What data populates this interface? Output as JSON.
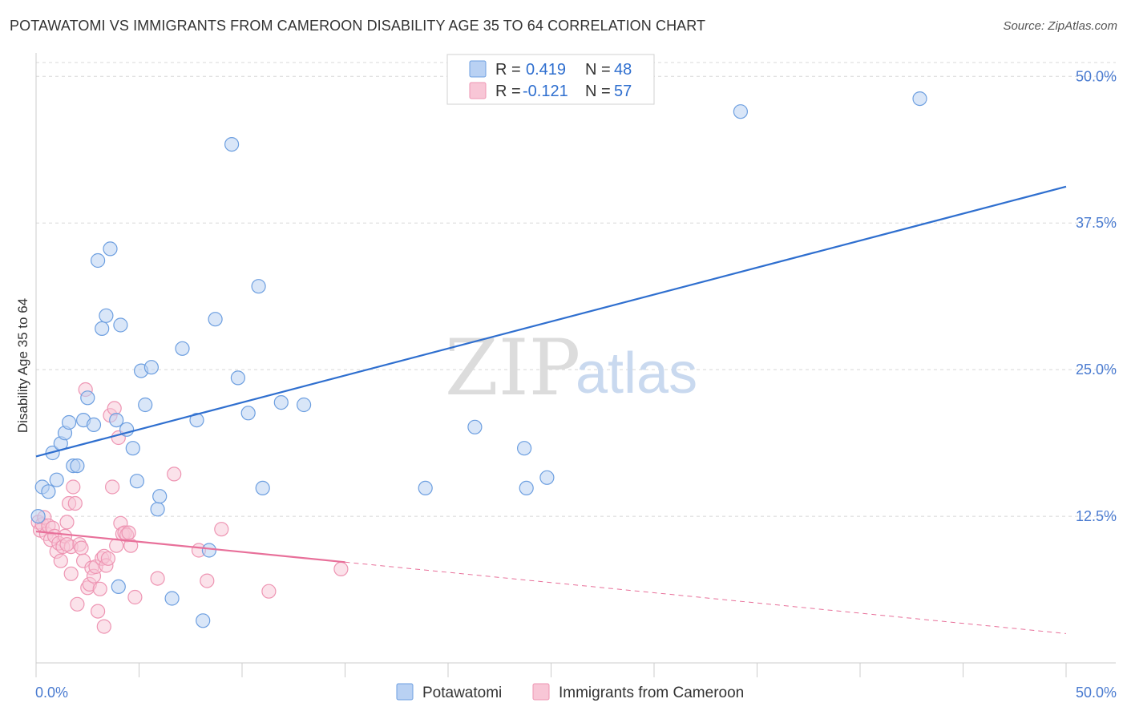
{
  "title": "POTAWATOMI VS IMMIGRANTS FROM CAMEROON DISABILITY AGE 35 TO 64 CORRELATION CHART",
  "source": "Source: ZipAtlas.com",
  "watermark": {
    "zip": "ZIP",
    "atlas": "atlas"
  },
  "colors": {
    "blue": "#2f6fcf",
    "blue_fill": "#b9d1f3",
    "blue_stroke": "#6d9fe0",
    "pink": "#e8709a",
    "pink_fill": "#f8c6d6",
    "pink_stroke": "#ee95b3",
    "tick_text": "#4a7bd0",
    "grid": "#d8d8d8"
  },
  "legend": {
    "rows": [
      {
        "r_label": "R =",
        "r_value": "0.419",
        "n_label": "N =",
        "n_value": "48"
      },
      {
        "r_label": "R =",
        "r_value": "-0.121",
        "n_label": "N =",
        "n_value": "57"
      }
    ]
  },
  "bottom_legend": [
    "Potawatomi",
    "Immigrants from Cameroon"
  ],
  "chart_data": {
    "type": "scatter",
    "title": "POTAWATOMI VS IMMIGRANTS FROM CAMEROON DISABILITY AGE 35 TO 64 CORRELATION CHART",
    "xlabel": "",
    "ylabel": "Disability Age 35 to 64",
    "xlim": [
      0,
      50
    ],
    "ylim": [
      0,
      52
    ],
    "x_tick_labels": [
      "0.0%",
      "50.0%"
    ],
    "y_tick_values": [
      12.5,
      25.0,
      37.5,
      50.0
    ],
    "y_tick_labels": [
      "12.5%",
      "25.0%",
      "37.5%",
      "50.0%"
    ],
    "grid": true,
    "legend_position": "top-center",
    "series": [
      {
        "name": "Potawatomi",
        "R": 0.419,
        "N": 48,
        "trend": {
          "x0": 0,
          "y0": 17.6,
          "x1": 50,
          "y1": 40.6,
          "dashed_from": null
        },
        "points": [
          [
            0.1,
            12.5
          ],
          [
            0.3,
            15.0
          ],
          [
            0.6,
            14.6
          ],
          [
            0.8,
            17.9
          ],
          [
            1.0,
            15.6
          ],
          [
            1.2,
            18.7
          ],
          [
            1.4,
            19.6
          ],
          [
            1.6,
            20.5
          ],
          [
            1.8,
            16.8
          ],
          [
            2.0,
            16.8
          ],
          [
            2.3,
            20.7
          ],
          [
            2.5,
            22.6
          ],
          [
            2.8,
            20.3
          ],
          [
            3.0,
            34.3
          ],
          [
            3.2,
            28.5
          ],
          [
            3.4,
            29.6
          ],
          [
            3.6,
            35.3
          ],
          [
            3.9,
            20.7
          ],
          [
            4.0,
            6.5
          ],
          [
            4.1,
            28.8
          ],
          [
            4.4,
            19.9
          ],
          [
            4.7,
            18.3
          ],
          [
            4.9,
            15.5
          ],
          [
            5.1,
            24.9
          ],
          [
            5.3,
            22.0
          ],
          [
            5.6,
            25.2
          ],
          [
            5.9,
            13.1
          ],
          [
            6.0,
            14.2
          ],
          [
            6.6,
            5.5
          ],
          [
            7.1,
            26.8
          ],
          [
            7.8,
            20.7
          ],
          [
            8.1,
            3.6
          ],
          [
            8.4,
            9.6
          ],
          [
            8.7,
            29.3
          ],
          [
            9.5,
            44.2
          ],
          [
            9.8,
            24.3
          ],
          [
            10.3,
            21.3
          ],
          [
            10.8,
            32.1
          ],
          [
            11.0,
            14.9
          ],
          [
            11.9,
            22.2
          ],
          [
            13.0,
            22.0
          ],
          [
            18.9,
            14.9
          ],
          [
            21.3,
            20.1
          ],
          [
            23.7,
            18.3
          ],
          [
            23.8,
            14.9
          ],
          [
            24.8,
            15.8
          ],
          [
            34.2,
            47.0
          ],
          [
            42.9,
            48.1
          ]
        ]
      },
      {
        "name": "Immigrants from Cameroon",
        "R": -0.121,
        "N": 57,
        "trend": {
          "x0": 0,
          "y0": 11.2,
          "x1": 50,
          "y1": 2.5,
          "dashed_from": 15.0
        },
        "points": [
          [
            0.1,
            12.0
          ],
          [
            0.2,
            11.3
          ],
          [
            0.3,
            11.8
          ],
          [
            0.4,
            12.4
          ],
          [
            0.5,
            11.0
          ],
          [
            0.6,
            11.7
          ],
          [
            0.7,
            10.5
          ],
          [
            0.8,
            11.5
          ],
          [
            0.9,
            10.8
          ],
          [
            1.0,
            9.5
          ],
          [
            1.1,
            10.2
          ],
          [
            1.2,
            8.7
          ],
          [
            1.3,
            9.9
          ],
          [
            1.4,
            10.8
          ],
          [
            1.5,
            12.0
          ],
          [
            1.6,
            13.6
          ],
          [
            1.7,
            9.9
          ],
          [
            1.7,
            7.6
          ],
          [
            1.8,
            15.0
          ],
          [
            1.9,
            13.6
          ],
          [
            2.0,
            5.0
          ],
          [
            2.1,
            10.1
          ],
          [
            2.2,
            9.8
          ],
          [
            2.3,
            8.7
          ],
          [
            2.4,
            23.3
          ],
          [
            2.5,
            6.4
          ],
          [
            2.6,
            6.7
          ],
          [
            2.7,
            8.1
          ],
          [
            2.8,
            7.4
          ],
          [
            2.9,
            8.2
          ],
          [
            3.0,
            4.4
          ],
          [
            3.1,
            6.3
          ],
          [
            3.2,
            8.9
          ],
          [
            3.3,
            9.1
          ],
          [
            3.4,
            8.3
          ],
          [
            3.5,
            8.9
          ],
          [
            3.3,
            3.1
          ],
          [
            3.6,
            21.1
          ],
          [
            3.7,
            15.0
          ],
          [
            3.8,
            21.7
          ],
          [
            3.9,
            10.0
          ],
          [
            4.0,
            19.2
          ],
          [
            4.1,
            11.9
          ],
          [
            4.2,
            11.0
          ],
          [
            4.3,
            11.1
          ],
          [
            4.4,
            10.9
          ],
          [
            4.5,
            11.1
          ],
          [
            4.6,
            10.0
          ],
          [
            4.8,
            5.6
          ],
          [
            5.9,
            7.2
          ],
          [
            6.7,
            16.1
          ],
          [
            7.9,
            9.6
          ],
          [
            8.3,
            7.0
          ],
          [
            9.0,
            11.4
          ],
          [
            11.3,
            6.1
          ],
          [
            14.8,
            8.0
          ],
          [
            1.5,
            10.1
          ]
        ]
      }
    ]
  }
}
